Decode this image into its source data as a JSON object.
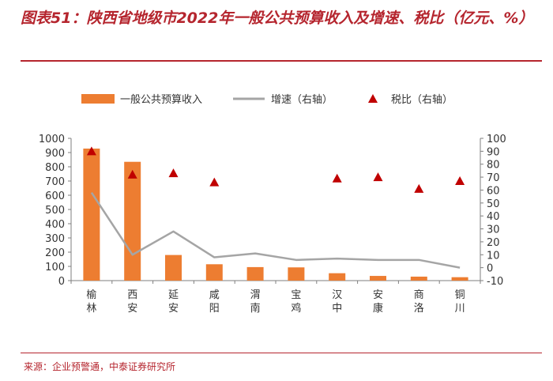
{
  "figure": {
    "title": "图表51：陕西省地级市2022年一般公共预算收入及增速、税比（亿元、%）",
    "source": "来源：企业预警通，中泰证券研究所"
  },
  "chart_data": {
    "type": "bar",
    "categories": [
      "榆林",
      "西安",
      "延安",
      "咸阳",
      "渭南",
      "宝鸡",
      "汉中",
      "安康",
      "商洛",
      "铜川"
    ],
    "series": [
      {
        "name": "一般公共预算收入",
        "type": "bar",
        "axis": "left",
        "values": [
          928,
          835,
          180,
          115,
          95,
          93,
          52,
          33,
          28,
          24
        ],
        "color": "#ed7d31"
      },
      {
        "name": "增速（右轴）",
        "type": "line",
        "axis": "right",
        "values": [
          58,
          10,
          28,
          8,
          11,
          6,
          7,
          6,
          6,
          0
        ],
        "color": "#a5a5a5"
      },
      {
        "name": "税比（右轴）",
        "type": "scatter",
        "axis": "right",
        "marker": "triangle",
        "values": [
          90,
          72,
          73,
          66,
          null,
          null,
          69,
          70,
          61,
          67
        ],
        "color": "#c00000"
      }
    ],
    "y_left": {
      "min": 0,
      "max": 1000,
      "step": 100,
      "ticks": [
        "0",
        "100",
        "200",
        "300",
        "400",
        "500",
        "600",
        "700",
        "800",
        "900",
        "1000"
      ]
    },
    "y_right": {
      "min": -10,
      "max": 100,
      "step": 10,
      "ticks": [
        "-10",
        "0",
        "10",
        "20",
        "30",
        "40",
        "50",
        "60",
        "70",
        "80",
        "90",
        "100"
      ]
    },
    "legend": {
      "position": "top-center"
    },
    "grid": false
  }
}
